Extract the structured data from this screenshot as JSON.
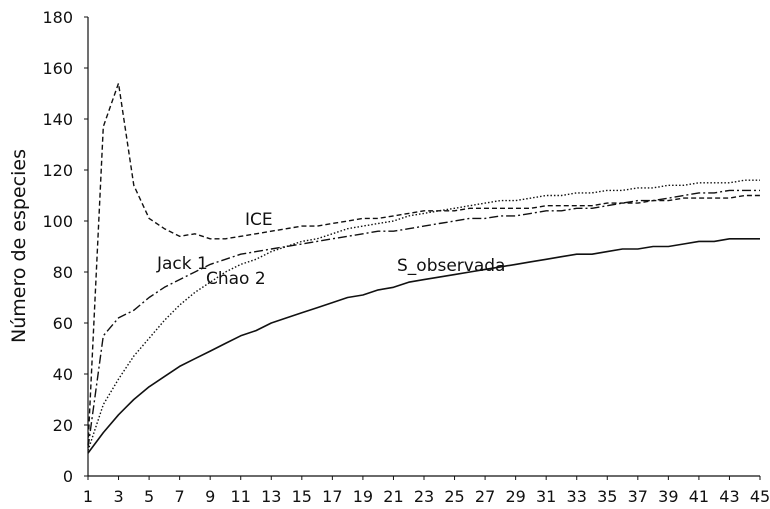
{
  "chart_data": {
    "type": "line",
    "title": "",
    "xlabel": "",
    "ylabel": "Número de especies",
    "xlim": [
      1,
      45
    ],
    "ylim": [
      0,
      180
    ],
    "grid": false,
    "legend": "none (inline series labels)",
    "x": [
      1,
      2,
      3,
      4,
      5,
      6,
      7,
      8,
      9,
      10,
      11,
      12,
      13,
      14,
      15,
      16,
      17,
      18,
      19,
      20,
      21,
      22,
      23,
      24,
      25,
      26,
      27,
      28,
      29,
      30,
      31,
      32,
      33,
      34,
      35,
      36,
      37,
      38,
      39,
      40,
      41,
      42,
      43,
      44,
      45
    ],
    "x_tick_labels": [
      "1",
      "3",
      "5",
      "7",
      "9",
      "11",
      "13",
      "15",
      "17",
      "19",
      "21",
      "23",
      "25",
      "27",
      "29",
      "31",
      "33",
      "35",
      "37",
      "39",
      "41",
      "43",
      "45"
    ],
    "y_ticks": [
      0,
      20,
      40,
      60,
      80,
      100,
      120,
      140,
      160,
      180
    ],
    "series": [
      {
        "name": "S_observada",
        "style": "solid",
        "values": [
          9,
          17,
          24,
          30,
          35,
          39,
          43,
          46,
          49,
          52,
          55,
          57,
          60,
          62,
          64,
          66,
          68,
          70,
          71,
          73,
          74,
          76,
          77,
          78,
          79,
          80,
          81,
          82,
          83,
          84,
          85,
          86,
          87,
          87,
          88,
          89,
          89,
          90,
          90,
          91,
          92,
          92,
          93,
          93,
          93
        ]
      },
      {
        "name": "ICE",
        "style": "dashed",
        "values": [
          12,
          137,
          154,
          114,
          101,
          97,
          94,
          95,
          93,
          93,
          94,
          95,
          96,
          97,
          98,
          98,
          99,
          100,
          101,
          101,
          102,
          103,
          104,
          104,
          104,
          105,
          105,
          105,
          105,
          105,
          106,
          106,
          106,
          106,
          107,
          107,
          107,
          108,
          108,
          109,
          109,
          109,
          109,
          110,
          110
        ]
      },
      {
        "name": "Jack 1",
        "style": "dash-dot",
        "values": [
          11,
          55,
          62,
          65,
          70,
          74,
          77,
          80,
          83,
          85,
          87,
          88,
          89,
          90,
          91,
          92,
          93,
          94,
          95,
          96,
          96,
          97,
          98,
          99,
          100,
          101,
          101,
          102,
          102,
          103,
          104,
          104,
          105,
          105,
          106,
          107,
          108,
          108,
          109,
          110,
          111,
          111,
          112,
          112,
          112
        ]
      },
      {
        "name": "Chao 2",
        "style": "dotted",
        "values": [
          10,
          28,
          38,
          47,
          54,
          61,
          67,
          72,
          76,
          80,
          83,
          85,
          88,
          90,
          92,
          93,
          95,
          97,
          98,
          99,
          100,
          102,
          103,
          104,
          105,
          106,
          107,
          108,
          108,
          109,
          110,
          110,
          111,
          111,
          112,
          112,
          113,
          113,
          114,
          114,
          115,
          115,
          115,
          116,
          116
        ]
      }
    ],
    "annotations": [
      "ICE",
      "Jack 1",
      "Chao 2",
      "S_observada"
    ]
  }
}
